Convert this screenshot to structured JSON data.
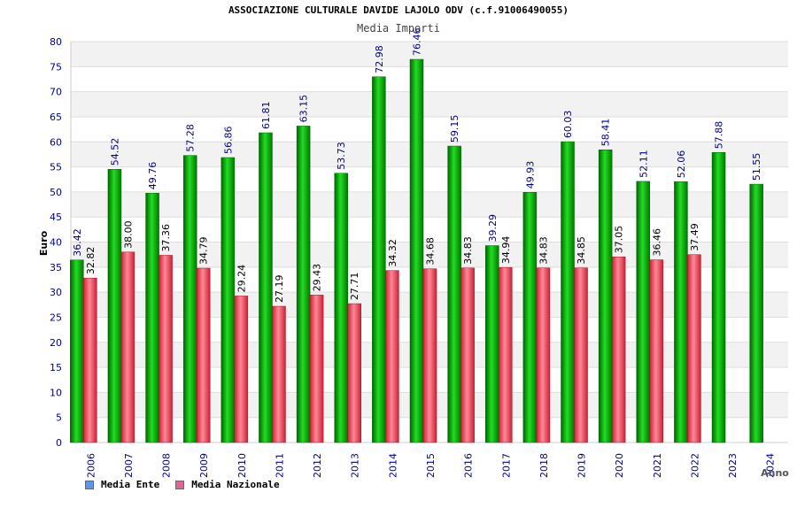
{
  "chart_data": {
    "type": "bar",
    "title": "ASSOCIAZIONE CULTURALE DAVIDE LAJOLO ODV (c.f.91006490055)",
    "subtitle": "Media Importi",
    "xlabel": "Anno",
    "ylabel": "Euro",
    "ylim": [
      0,
      80
    ],
    "ytick_step": 5,
    "grid": "horizontal bands",
    "legend_position": "bottom-left",
    "categories": [
      "2006",
      "2007",
      "2008",
      "2009",
      "2010",
      "2011",
      "2012",
      "2013",
      "2014",
      "2015",
      "2016",
      "2017",
      "2018",
      "2019",
      "2020",
      "2021",
      "2022",
      "2023",
      "2024"
    ],
    "series": [
      {
        "name": "Media Ente",
        "color": "#00b000",
        "legend_color": "#5599ee",
        "values": [
          36.42,
          54.52,
          49.76,
          57.28,
          56.86,
          61.81,
          63.15,
          53.73,
          72.98,
          76.46,
          59.15,
          39.29,
          49.93,
          60.03,
          58.41,
          52.11,
          52.06,
          57.88,
          51.55
        ],
        "labels": [
          "36.42",
          "54.52",
          "49.76",
          "57.28",
          "56.86",
          "61.81",
          "63.15",
          "53.73",
          "72.98",
          "76.46",
          "59.15",
          "39.29",
          "49.93",
          "60.03",
          "58.41",
          "52.11",
          "52.06",
          "57.88",
          "51.55"
        ]
      },
      {
        "name": "Media Nazionale",
        "color": "#e03040",
        "legend_color": "#dd6699",
        "values": [
          32.82,
          38.0,
          37.36,
          34.79,
          29.24,
          27.19,
          29.43,
          27.71,
          34.32,
          34.68,
          34.83,
          34.94,
          34.83,
          34.85,
          37.05,
          36.46,
          37.49,
          null,
          null
        ],
        "labels": [
          "32.82",
          "38.00",
          "37.36",
          "34.79",
          "29.24",
          "27.19",
          "29.43",
          "27.71",
          "34.32",
          "34.68",
          "34.83",
          "34.94",
          "34.83",
          "34.85",
          "37.05",
          "36.46",
          "37.49",
          "",
          ""
        ]
      }
    ]
  }
}
